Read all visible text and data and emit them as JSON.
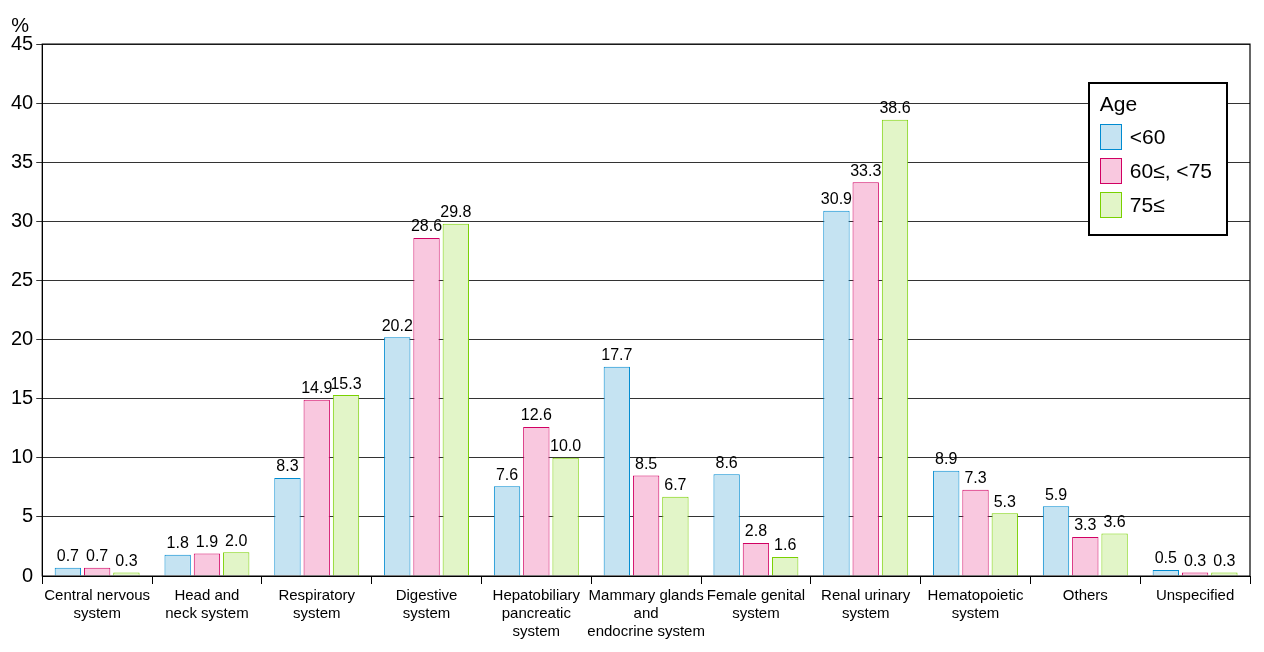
{
  "chart_data": {
    "type": "bar",
    "ylabel": "%",
    "legend_title": "Age",
    "legend": "top right",
    "grid": "y",
    "ylim": [
      0,
      45
    ],
    "yticks": [
      0,
      5,
      10,
      15,
      20,
      25,
      30,
      35,
      40,
      45
    ],
    "categories": [
      "Central nervous\nsystem",
      "Head and\nneck system",
      "Respiratory\nsystem",
      "Digestive\nsystem",
      "Hepatobiliary\npancreatic\nsystem",
      "Mammary glands\nand\nendocrine system",
      "Female genital\nsystem",
      "Renal urinary\nsystem",
      "Hematopoietic\nsystem",
      "Others",
      "Unspecified"
    ],
    "series": [
      {
        "name": "<60",
        "color": "#c5e3f2",
        "values": [
          0.7,
          1.8,
          8.3,
          20.2,
          7.6,
          17.7,
          8.6,
          30.9,
          8.9,
          5.9,
          0.5
        ],
        "value_labels": [
          "0.7",
          "1.8",
          "8.3",
          "20.2",
          "7.6",
          "17.7",
          "8.6",
          "30.9",
          "8.9",
          "5.9",
          "0.5"
        ]
      },
      {
        "name": "60≤, <75",
        "color": "#f9c8df",
        "values": [
          0.7,
          1.9,
          14.9,
          28.6,
          12.6,
          8.5,
          2.8,
          33.3,
          7.3,
          3.3,
          0.3
        ],
        "value_labels": [
          "0.7",
          "1.9",
          "14.9",
          "28.6",
          "12.6",
          "8.5",
          "2.8",
          "33.3",
          "7.3",
          "3.3",
          "0.3"
        ]
      },
      {
        "name": "75≤",
        "color": "#e2f5c8",
        "values": [
          0.3,
          2.0,
          15.3,
          29.8,
          10.0,
          6.7,
          1.6,
          38.6,
          5.3,
          3.6,
          0.3
        ],
        "value_labels": [
          "0.3",
          "2.0",
          "15.3",
          "29.8",
          "10.0",
          "6.7",
          "1.6",
          "38.6",
          "5.3",
          "3.6",
          "0.3"
        ]
      }
    ]
  }
}
